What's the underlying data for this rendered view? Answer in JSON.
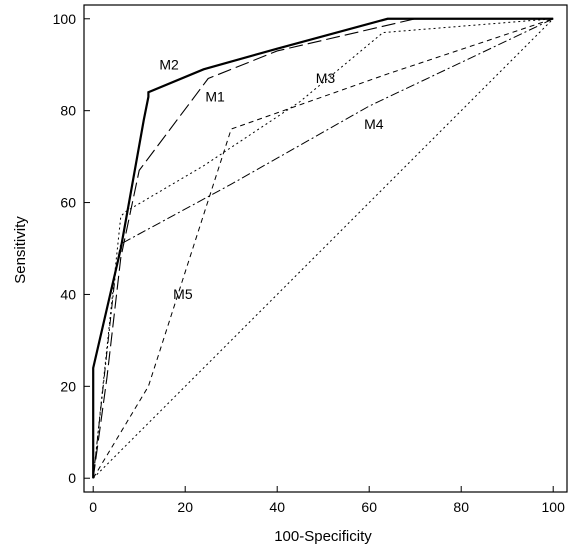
{
  "chart_data": {
    "type": "line",
    "xlabel": "100-Specificity",
    "ylabel": "Sensitivity",
    "xlim": [
      -2,
      103
    ],
    "ylim": [
      -3,
      103
    ],
    "xticks": [
      0,
      20,
      40,
      60,
      80,
      100
    ],
    "yticks": [
      0,
      20,
      40,
      60,
      80,
      100
    ],
    "grid": false,
    "legend": "none",
    "series": [
      {
        "name": "M2",
        "style": "solid-thick",
        "label_at": [
          16.5,
          89
        ],
        "x": [
          0,
          0,
          6,
          11,
          12,
          12,
          24,
          40,
          64,
          100
        ],
        "y": [
          0,
          24,
          50,
          78,
          83,
          84,
          89,
          93.5,
          100,
          100
        ]
      },
      {
        "name": "M1",
        "style": "long-dash",
        "label_at": [
          26.5,
          82
        ],
        "x": [
          0,
          3,
          6,
          10,
          25,
          40,
          70,
          100
        ],
        "y": [
          0,
          22,
          48,
          67,
          87,
          93,
          100,
          100
        ]
      },
      {
        "name": "M3",
        "style": "dotted",
        "label_at": [
          50.5,
          86
        ],
        "x": [
          0,
          6,
          7,
          24,
          45,
          63,
          100
        ],
        "y": [
          0,
          57,
          58,
          68,
          82,
          97,
          100
        ]
      },
      {
        "name": "M4",
        "style": "dash-dot",
        "label_at": [
          61,
          76
        ],
        "x": [
          0,
          5,
          6,
          30,
          60,
          100
        ],
        "y": [
          0,
          46,
          51,
          64,
          81,
          100
        ]
      },
      {
        "name": "M5",
        "style": "short-dash",
        "label_at": [
          19.5,
          39
        ],
        "x": [
          0,
          12,
          30,
          64,
          100
        ],
        "y": [
          0,
          20,
          76,
          88,
          100
        ]
      },
      {
        "name": "",
        "style": "dotted-diagonal",
        "x": [
          0,
          100
        ],
        "y": [
          0,
          100
        ]
      }
    ]
  }
}
